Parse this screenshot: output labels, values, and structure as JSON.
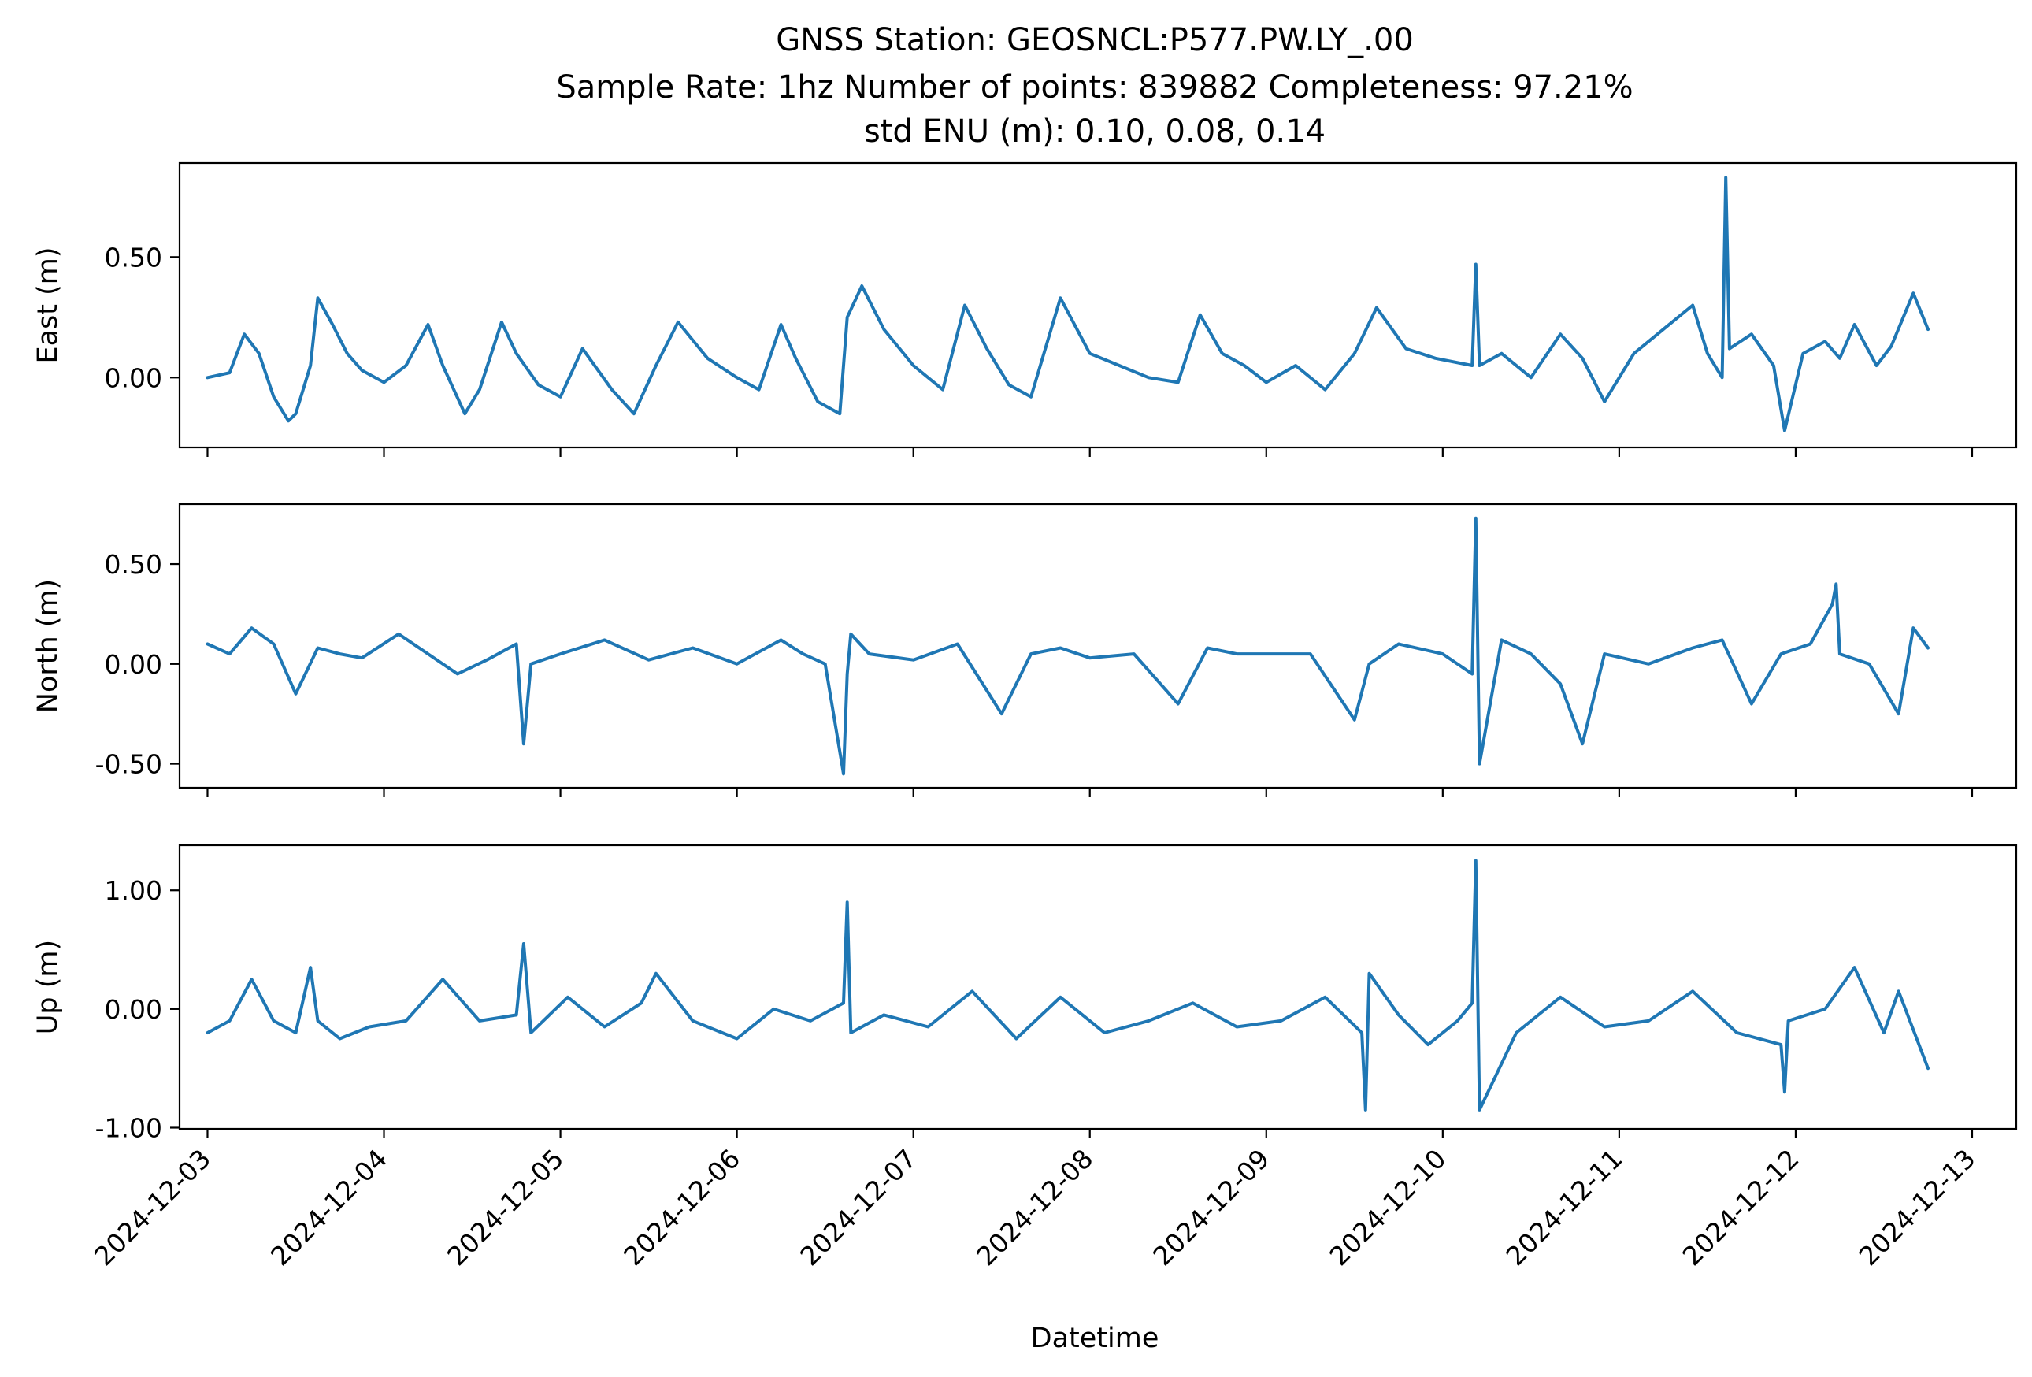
{
  "figure": {
    "title_lines": [
      "GNSS Station: GEOSNCL:P577.PW.LY_.00",
      "Sample Rate: 1hz   Number of points: 839882    Completeness:  97.21%",
      "std ENU (m):  0.10, 0.08, 0.14"
    ]
  },
  "chart_data": [
    {
      "type": "line",
      "ylabel": "East (m)",
      "ylim": [
        -0.29,
        0.89
      ],
      "yticks": [
        0.0,
        0.5
      ],
      "ytick_labels": [
        "0.00",
        "0.50"
      ],
      "xlim": [
        "2024-12-02T20:12",
        "2024-12-13T06:00"
      ],
      "xticks": [
        "2024-12-03",
        "2024-12-04",
        "2024-12-05",
        "2024-12-06",
        "2024-12-07",
        "2024-12-08",
        "2024-12-09",
        "2024-12-10",
        "2024-12-11",
        "2024-12-12",
        "2024-12-13"
      ],
      "series": [
        {
          "color": "#1f77b4",
          "x": [
            "2024-12-03T00:00",
            "2024-12-03T03:00",
            "2024-12-03T05:00",
            "2024-12-03T07:00",
            "2024-12-03T09:00",
            "2024-12-03T11:00",
            "2024-12-03T12:00",
            "2024-12-03T14:00",
            "2024-12-03T15:00",
            "2024-12-03T17:00",
            "2024-12-03T19:00",
            "2024-12-03T21:00",
            "2024-12-04T00:00",
            "2024-12-04T03:00",
            "2024-12-04T06:00",
            "2024-12-04T08:00",
            "2024-12-04T11:00",
            "2024-12-04T13:00",
            "2024-12-04T16:00",
            "2024-12-04T18:00",
            "2024-12-04T21:00",
            "2024-12-05T00:00",
            "2024-12-05T03:00",
            "2024-12-05T07:00",
            "2024-12-05T10:00",
            "2024-12-05T13:00",
            "2024-12-05T16:00",
            "2024-12-05T20:00",
            "2024-12-06T00:00",
            "2024-12-06T03:00",
            "2024-12-06T06:00",
            "2024-12-06T08:00",
            "2024-12-06T11:00",
            "2024-12-06T14:00",
            "2024-12-06T15:00",
            "2024-12-06T17:00",
            "2024-12-06T20:00",
            "2024-12-07T00:00",
            "2024-12-07T04:00",
            "2024-12-07T07:00",
            "2024-12-07T10:00",
            "2024-12-07T13:00",
            "2024-12-07T16:00",
            "2024-12-07T20:00",
            "2024-12-08T00:00",
            "2024-12-08T04:00",
            "2024-12-08T08:00",
            "2024-12-08T12:00",
            "2024-12-08T15:00",
            "2024-12-08T18:00",
            "2024-12-08T21:00",
            "2024-12-09T00:00",
            "2024-12-09T04:00",
            "2024-12-09T08:00",
            "2024-12-09T12:00",
            "2024-12-09T15:00",
            "2024-12-09T19:00",
            "2024-12-09T23:00",
            "2024-12-10T04:00",
            "2024-12-10T04:30",
            "2024-12-10T05:00",
            "2024-12-10T08:00",
            "2024-12-10T12:00",
            "2024-12-10T16:00",
            "2024-12-10T19:00",
            "2024-12-10T22:00",
            "2024-12-11T02:00",
            "2024-12-11T06:00",
            "2024-12-11T10:00",
            "2024-12-11T12:00",
            "2024-12-11T14:00",
            "2024-12-11T14:30",
            "2024-12-11T15:00",
            "2024-12-11T18:00",
            "2024-12-11T21:00",
            "2024-12-11T22:30",
            "2024-12-12T01:00",
            "2024-12-12T04:00",
            "2024-12-12T06:00",
            "2024-12-12T08:00",
            "2024-12-12T11:00",
            "2024-12-12T13:00",
            "2024-12-12T16:00",
            "2024-12-12T18:00"
          ],
          "y": [
            0.0,
            0.02,
            0.18,
            0.1,
            -0.08,
            -0.18,
            -0.15,
            0.05,
            0.33,
            0.22,
            0.1,
            0.03,
            -0.02,
            0.05,
            0.22,
            0.05,
            -0.15,
            -0.05,
            0.23,
            0.1,
            -0.03,
            -0.08,
            0.12,
            -0.05,
            -0.15,
            0.05,
            0.23,
            0.08,
            0.0,
            -0.05,
            0.22,
            0.08,
            -0.1,
            -0.15,
            0.25,
            0.38,
            0.2,
            0.05,
            -0.05,
            0.3,
            0.12,
            -0.03,
            -0.08,
            0.33,
            0.1,
            0.05,
            0.0,
            -0.02,
            0.26,
            0.1,
            0.05,
            -0.02,
            0.05,
            -0.05,
            0.1,
            0.29,
            0.12,
            0.08,
            0.05,
            0.47,
            0.05,
            0.1,
            0.0,
            0.18,
            0.08,
            -0.1,
            0.1,
            0.2,
            0.3,
            0.1,
            0.0,
            0.83,
            0.12,
            0.18,
            0.05,
            -0.22,
            0.1,
            0.15,
            0.08,
            0.22,
            0.05,
            0.13,
            0.35,
            0.2
          ]
        }
      ]
    },
    {
      "type": "line",
      "ylabel": "North (m)",
      "ylim": [
        -0.62,
        0.8
      ],
      "yticks": [
        -0.5,
        0.0,
        0.5
      ],
      "ytick_labels": [
        "-0.50",
        "0.00",
        "0.50"
      ],
      "xlim": [
        "2024-12-02T20:12",
        "2024-12-13T06:00"
      ],
      "xticks": [
        "2024-12-03",
        "2024-12-04",
        "2024-12-05",
        "2024-12-06",
        "2024-12-07",
        "2024-12-08",
        "2024-12-09",
        "2024-12-10",
        "2024-12-11",
        "2024-12-12",
        "2024-12-13"
      ],
      "series": [
        {
          "color": "#1f77b4",
          "x": [
            "2024-12-03T00:00",
            "2024-12-03T03:00",
            "2024-12-03T06:00",
            "2024-12-03T09:00",
            "2024-12-03T12:00",
            "2024-12-03T15:00",
            "2024-12-03T18:00",
            "2024-12-03T21:00",
            "2024-12-04T02:00",
            "2024-12-04T06:00",
            "2024-12-04T10:00",
            "2024-12-04T14:00",
            "2024-12-04T18:00",
            "2024-12-04T19:00",
            "2024-12-04T20:00",
            "2024-12-05T00:00",
            "2024-12-05T06:00",
            "2024-12-05T12:00",
            "2024-12-05T18:00",
            "2024-12-06T00:00",
            "2024-12-06T06:00",
            "2024-12-06T09:00",
            "2024-12-06T12:00",
            "2024-12-06T14:30",
            "2024-12-06T15:00",
            "2024-12-06T15:30",
            "2024-12-06T18:00",
            "2024-12-07T00:00",
            "2024-12-07T06:00",
            "2024-12-07T12:00",
            "2024-12-07T16:00",
            "2024-12-07T20:00",
            "2024-12-08T00:00",
            "2024-12-08T06:00",
            "2024-12-08T12:00",
            "2024-12-08T16:00",
            "2024-12-08T20:00",
            "2024-12-09T00:00",
            "2024-12-09T06:00",
            "2024-12-09T12:00",
            "2024-12-09T14:00",
            "2024-12-09T18:00",
            "2024-12-10T00:00",
            "2024-12-10T04:00",
            "2024-12-10T04:30",
            "2024-12-10T05:00",
            "2024-12-10T08:00",
            "2024-12-10T12:00",
            "2024-12-10T16:00",
            "2024-12-10T19:00",
            "2024-12-10T22:00",
            "2024-12-11T04:00",
            "2024-12-11T10:00",
            "2024-12-11T14:00",
            "2024-12-11T18:00",
            "2024-12-11T22:00",
            "2024-12-12T02:00",
            "2024-12-12T05:00",
            "2024-12-12T05:30",
            "2024-12-12T06:00",
            "2024-12-12T10:00",
            "2024-12-12T14:00",
            "2024-12-12T16:00",
            "2024-12-12T18:00"
          ],
          "y": [
            0.1,
            0.05,
            0.18,
            0.1,
            -0.15,
            0.08,
            0.05,
            0.03,
            0.15,
            0.05,
            -0.05,
            0.02,
            0.1,
            -0.4,
            0.0,
            0.05,
            0.12,
            0.02,
            0.08,
            0.0,
            0.12,
            0.05,
            0.0,
            -0.55,
            -0.05,
            0.15,
            0.05,
            0.02,
            0.1,
            -0.25,
            0.05,
            0.08,
            0.03,
            0.05,
            -0.2,
            0.08,
            0.05,
            0.05,
            0.05,
            -0.28,
            0.0,
            0.1,
            0.05,
            -0.05,
            0.73,
            -0.5,
            0.12,
            0.05,
            -0.1,
            -0.4,
            0.05,
            0.0,
            0.08,
            0.12,
            -0.2,
            0.05,
            0.1,
            0.3,
            0.4,
            0.05,
            0.0,
            -0.25,
            0.18,
            0.08
          ]
        }
      ]
    },
    {
      "type": "line",
      "ylabel": "Up (m)",
      "ylim": [
        -1.01,
        1.38
      ],
      "yticks": [
        -1.0,
        0.0,
        1.0
      ],
      "ytick_labels": [
        "-1.00",
        "0.00",
        "1.00"
      ],
      "xlabel": "Datetime",
      "xlim": [
        "2024-12-02T20:12",
        "2024-12-13T06:00"
      ],
      "xticks": [
        "2024-12-03",
        "2024-12-04",
        "2024-12-05",
        "2024-12-06",
        "2024-12-07",
        "2024-12-08",
        "2024-12-09",
        "2024-12-10",
        "2024-12-11",
        "2024-12-12",
        "2024-12-13"
      ],
      "series": [
        {
          "color": "#1f77b4",
          "x": [
            "2024-12-03T00:00",
            "2024-12-03T03:00",
            "2024-12-03T06:00",
            "2024-12-03T09:00",
            "2024-12-03T12:00",
            "2024-12-03T14:00",
            "2024-12-03T15:00",
            "2024-12-03T18:00",
            "2024-12-03T22:00",
            "2024-12-04T03:00",
            "2024-12-04T08:00",
            "2024-12-04T13:00",
            "2024-12-04T18:00",
            "2024-12-04T19:00",
            "2024-12-04T20:00",
            "2024-12-05T01:00",
            "2024-12-05T06:00",
            "2024-12-05T11:00",
            "2024-12-05T13:00",
            "2024-12-05T18:00",
            "2024-12-06T00:00",
            "2024-12-06T05:00",
            "2024-12-06T10:00",
            "2024-12-06T14:30",
            "2024-12-06T15:00",
            "2024-12-06T15:30",
            "2024-12-06T20:00",
            "2024-12-07T02:00",
            "2024-12-07T08:00",
            "2024-12-07T14:00",
            "2024-12-07T20:00",
            "2024-12-08T02:00",
            "2024-12-08T08:00",
            "2024-12-08T14:00",
            "2024-12-08T20:00",
            "2024-12-09T02:00",
            "2024-12-09T08:00",
            "2024-12-09T13:00",
            "2024-12-09T13:30",
            "2024-12-09T14:00",
            "2024-12-09T18:00",
            "2024-12-09T22:00",
            "2024-12-10T02:00",
            "2024-12-10T04:00",
            "2024-12-10T04:30",
            "2024-12-10T05:00",
            "2024-12-10T10:00",
            "2024-12-10T16:00",
            "2024-12-10T22:00",
            "2024-12-11T04:00",
            "2024-12-11T10:00",
            "2024-12-11T16:00",
            "2024-12-11T22:00",
            "2024-12-11T22:30",
            "2024-12-11T23:00",
            "2024-12-12T04:00",
            "2024-12-12T08:00",
            "2024-12-12T12:00",
            "2024-12-12T14:00",
            "2024-12-12T18:00"
          ],
          "y": [
            -0.2,
            -0.1,
            0.25,
            -0.1,
            -0.2,
            0.35,
            -0.1,
            -0.25,
            -0.15,
            -0.1,
            0.25,
            -0.1,
            -0.05,
            0.55,
            -0.2,
            0.1,
            -0.15,
            0.05,
            0.3,
            -0.1,
            -0.25,
            0.0,
            -0.1,
            0.05,
            0.9,
            -0.2,
            -0.05,
            -0.15,
            0.15,
            -0.25,
            0.1,
            -0.2,
            -0.1,
            0.05,
            -0.15,
            -0.1,
            0.1,
            -0.2,
            -0.85,
            0.3,
            -0.05,
            -0.3,
            -0.1,
            0.05,
            1.25,
            -0.85,
            -0.2,
            0.1,
            -0.15,
            -0.1,
            0.15,
            -0.2,
            -0.3,
            -0.7,
            -0.1,
            0.0,
            0.35,
            -0.2,
            0.15,
            -0.5
          ]
        }
      ]
    }
  ]
}
